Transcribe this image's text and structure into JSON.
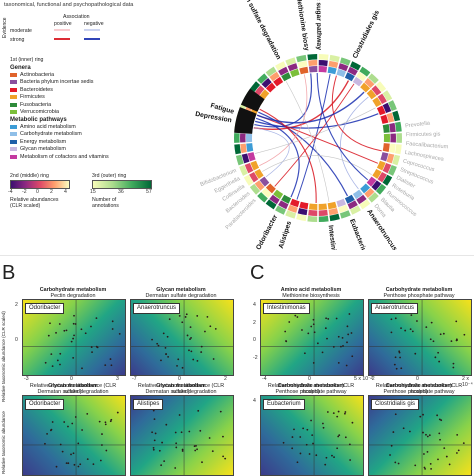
{
  "panelA": {
    "header_text": "taxonomical, functional and psychopathological data",
    "association_title": "Association",
    "association_cols": [
      "positive",
      "negative"
    ],
    "evidence_label": "Evidence",
    "evidence_rows": [
      "moderate",
      "strong"
    ],
    "inner_ring_title": "1st (inner) ring",
    "genera_title": "Genera",
    "genera": [
      {
        "label": "Actinobacteria",
        "color": "#e0632b"
      },
      {
        "label": "Bacteria phylum incertae sedis",
        "color": "#8a4f9e"
      },
      {
        "label": "Bacteroidetes",
        "color": "#e31a2a"
      },
      {
        "label": "Firmicutes",
        "color": "#f0a22a"
      },
      {
        "label": "Fusobacteria",
        "color": "#2e8b3a"
      },
      {
        "label": "Verrucomicrobia",
        "color": "#7bbf3a"
      }
    ],
    "metabolic_title": "Metabolic pathways",
    "metabolic": [
      {
        "label": "Amino acid metabolism",
        "color": "#3c9cd6"
      },
      {
        "label": "Carbohydrate metabolism",
        "color": "#8fbfe8"
      },
      {
        "label": "Energy metabolism",
        "color": "#1f5fa8"
      },
      {
        "label": "Glycan metabolism",
        "color": "#c8b8e0"
      },
      {
        "label": "Metabolism of cofactors and vitamins",
        "color": "#c43aa0"
      }
    ],
    "ring2_title": "2nd (middle) ring",
    "ring2_ticks": [
      "-4",
      "-2",
      "0",
      "2",
      "4"
    ],
    "ring2_caption1": "Relative abundances",
    "ring2_caption2": "(CLR scaled)",
    "ring3_title": "3rd (outer) ring",
    "ring3_ticks": [
      "15",
      "36",
      "57"
    ],
    "ring3_caption1": "Number of",
    "ring3_caption2": "annotations",
    "circos_bold_labels": [
      {
        "text": "Dermatan sulfate degradation",
        "x": 0,
        "y": 0
      },
      {
        "text": "Methionine biosy",
        "x": 0,
        "y": 0
      },
      {
        "text": "GlcNAc sugar pathway",
        "x": 0,
        "y": 0
      },
      {
        "text": "Clostridiales gis",
        "x": 0,
        "y": 0
      },
      {
        "text": "Depression",
        "x": 0,
        "y": 0
      },
      {
        "text": "Fatigue",
        "x": 0,
        "y": 0
      },
      {
        "text": "Anaerotruncus",
        "x": 0,
        "y": 0
      },
      {
        "text": "Eubacterium",
        "x": 0,
        "y": 0
      },
      {
        "text": "Intestinimonas",
        "x": 0,
        "y": 0
      },
      {
        "text": "Alistipes",
        "x": 0,
        "y": 0
      },
      {
        "text": "Odoribacter",
        "x": 0,
        "y": 0
      }
    ],
    "circos_gray_labels": [
      "Bifidobacterium",
      "Eggerthella",
      "Collinsella",
      "Bacteroides",
      "Parabacteroides",
      "Prevotella",
      "Firmicutes gis",
      "Faecalibacterium",
      "Lachnospiracea",
      "Coprococcus",
      "Streptococcus",
      "Dialister",
      "Roseburia",
      "Ruminococcus",
      "Blautia",
      "Dorea"
    ]
  },
  "panelB": {
    "letter": "B",
    "ylabel_top": "Relative taxonomic abundance (CLR scaled)",
    "ylabel_bottom": "Relative taxonomic abundance",
    "plots": [
      {
        "title": "Carbohydrate metabolism",
        "subtitle": "Pectin degradation",
        "genus": "Odoribacter",
        "xticks": [
          "-3",
          "0",
          "3"
        ],
        "yticks": [
          "2",
          "0"
        ],
        "xlabel": "Relative metabolic abundance (CLR scaled)"
      },
      {
        "title": "Glycan metabolism",
        "subtitle": "Dermatan sulfate degradation",
        "genus": "Anaerotruncus",
        "xticks": [
          "-7",
          "0",
          "2"
        ],
        "yticks": [],
        "xlabel": "Relative metabolic abundance (CLR scaled)"
      },
      {
        "title": "Glycan metabolism",
        "subtitle": "Dermatan sulfate degradation",
        "genus": "Odoribacter",
        "xticks": [],
        "yticks": [],
        "xlabel": ""
      },
      {
        "title": "Glycan metabolism",
        "subtitle": "Dermatan sulfate degradation",
        "genus": "Alistipes",
        "xticks": [],
        "yticks": [],
        "xlabel": ""
      }
    ]
  },
  "panelC": {
    "letter": "C",
    "plots": [
      {
        "title": "Amino acid metabolism",
        "subtitle": "Methionine biosynthesis",
        "genus": "Intestinimonas",
        "xticks": [
          "-4",
          "0",
          "5 x 10⁻³"
        ],
        "yticks": [
          "4",
          "2",
          "0",
          "-2"
        ],
        "xlabel": "Relative metabolic abundance (CLR scaled)"
      },
      {
        "title": "Carbohydrate metabolism",
        "subtitle": "Penthose phosphate pathway",
        "genus": "Anaerotruncus",
        "xticks": [
          "-2",
          "0",
          "2 x 10⁻⁴"
        ],
        "yticks": [],
        "xlabel": "Relative metabolic abundance (CLR scaled)"
      },
      {
        "title": "Carbohydrate metabolism",
        "subtitle": "Penthose phosphate pathway",
        "genus": "Eubacterium",
        "xticks": [],
        "yticks": [
          "4"
        ],
        "xlabel": ""
      },
      {
        "title": "Carbohydrate metabolism",
        "subtitle": "Penthose phosphate pathway",
        "genus": "Clostridialis gis",
        "xticks": [],
        "yticks": [],
        "xlabel": ""
      }
    ]
  }
}
